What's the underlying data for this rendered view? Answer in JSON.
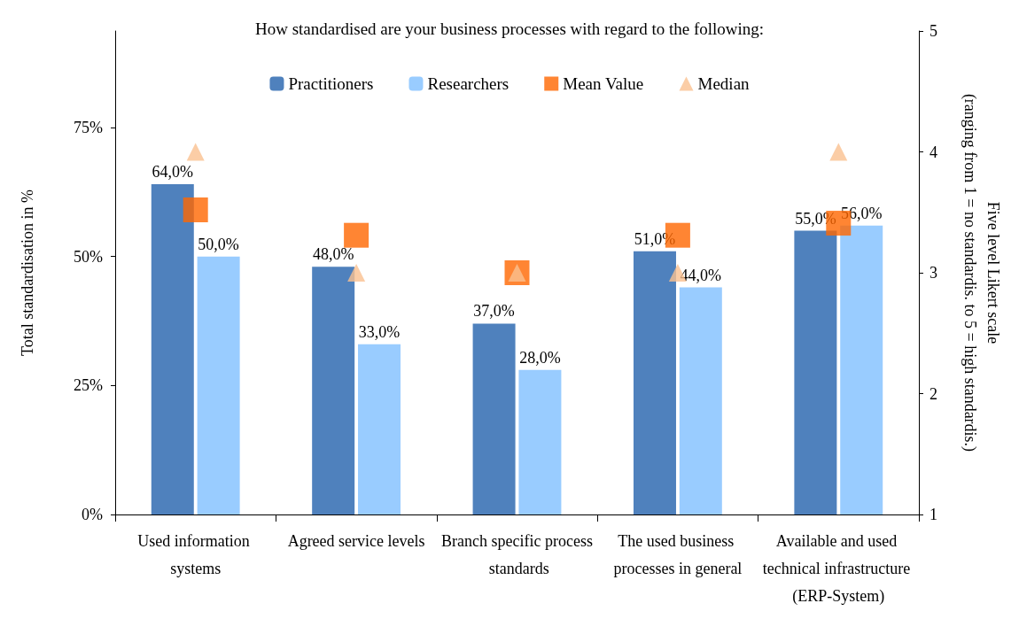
{
  "chart_data": {
    "type": "bar",
    "title": "How standardised are your business processes with regard to the following:",
    "ylabel": "Total standardisation in %",
    "y2label": "Five level Likert scale\n(ranging from 1 = no standardis. to 5 = high standardis.)",
    "categories": [
      "Used information systems",
      "Agreed service levels",
      "Branch specific process standards",
      "The used business processes in general",
      "Available and used technical infrastructure (ERP-System)"
    ],
    "series": [
      {
        "name": "Practitioners",
        "color": "#4f81bd",
        "values": [
          64,
          48,
          37,
          51,
          55
        ],
        "value_labels": [
          "64,0%",
          "48,0%",
          "37,0%",
          "51,0%",
          "55,0%"
        ]
      },
      {
        "name": "Researchers",
        "color": "#99ccff",
        "values": [
          50,
          33,
          28,
          44,
          56
        ],
        "value_labels": [
          "50,0%",
          "33,0%",
          "28,0%",
          "44,0%",
          "56,0%"
        ]
      },
      {
        "name": "Mean Value",
        "type": "scatter",
        "axis": "y2",
        "marker": "square",
        "color": "#ff6600",
        "values": [
          3.52,
          3.31,
          3.0,
          3.31,
          3.41
        ]
      },
      {
        "name": "Median",
        "type": "scatter",
        "axis": "y2",
        "marker": "triangle",
        "color": "#fac090",
        "values": [
          4,
          3,
          3,
          3,
          4
        ]
      }
    ],
    "ylim": [
      0,
      93.7
    ],
    "yticks": [
      {
        "value": 0,
        "label": "0%"
      },
      {
        "value": 25,
        "label": "25%"
      },
      {
        "value": 50,
        "label": "50%"
      },
      {
        "value": 75,
        "label": "75%"
      }
    ],
    "y2lim": [
      1,
      5
    ],
    "y2ticks": [
      1,
      2,
      3,
      4,
      5
    ],
    "legend": "top",
    "grid": false
  }
}
